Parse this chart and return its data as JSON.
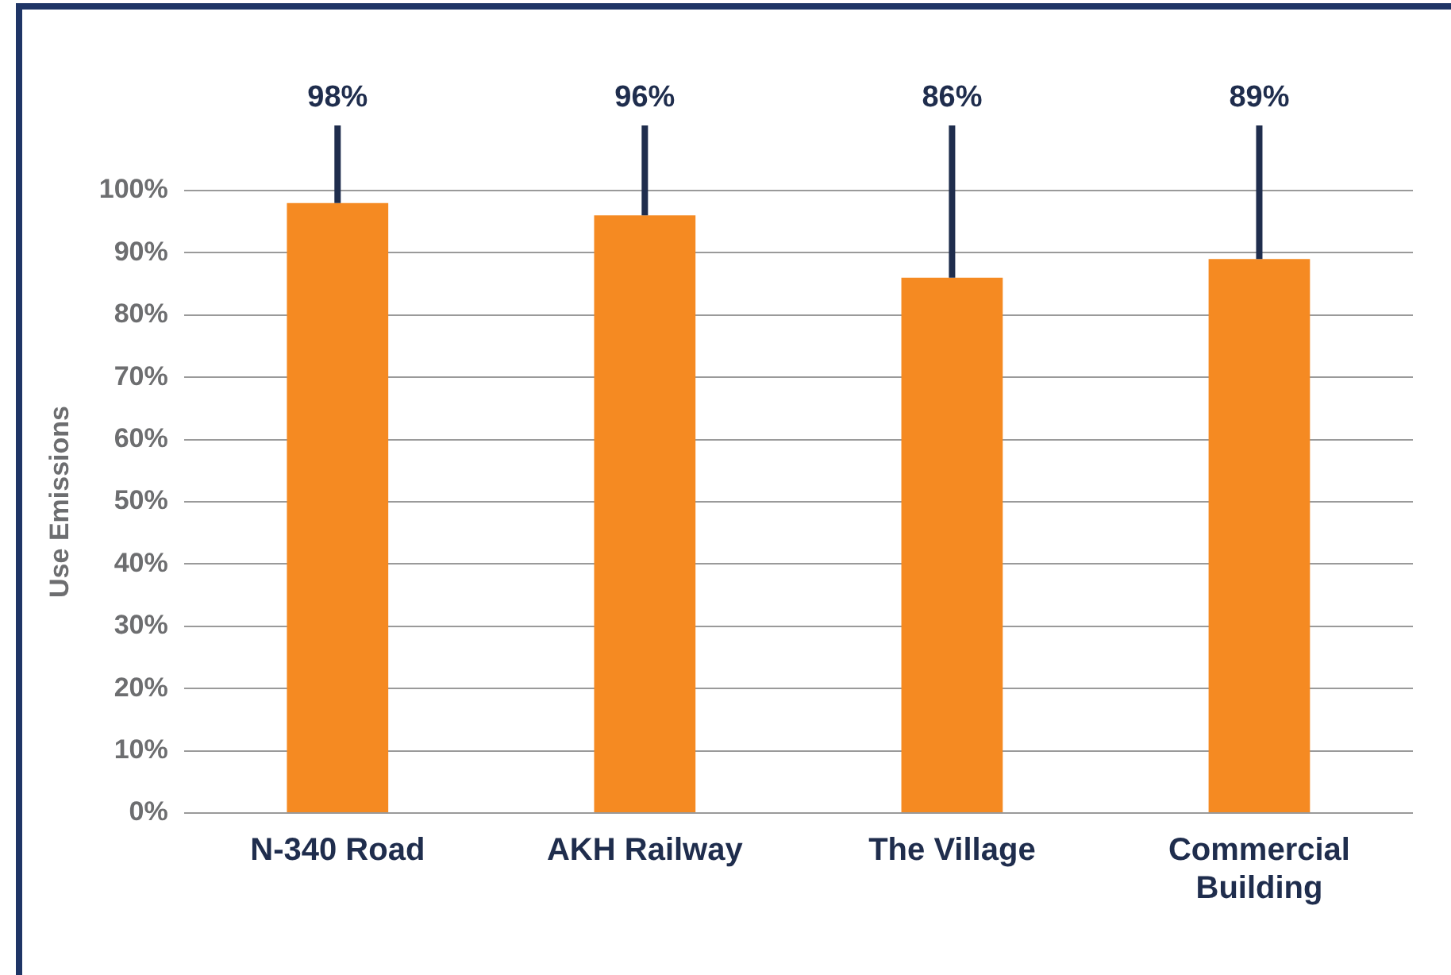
{
  "chart_data": {
    "type": "bar",
    "ylabel": "Use Emissions",
    "categories": [
      "N-340 Road",
      "AKH Railway",
      "The Village",
      "Commercial Building"
    ],
    "values": [
      98,
      96,
      86,
      89
    ],
    "color": "#f58a22",
    "value_labels": [
      "98%",
      "96%",
      "86%",
      "89%"
    ],
    "ylim": [
      0,
      100
    ],
    "yticks": [
      {
        "value": 0,
        "label": "0%"
      },
      {
        "value": 10,
        "label": "10%"
      },
      {
        "value": 20,
        "label": "20%"
      },
      {
        "value": 30,
        "label": "30%"
      },
      {
        "value": 40,
        "label": "40%"
      },
      {
        "value": 50,
        "label": "50%"
      },
      {
        "value": 60,
        "label": "60%"
      },
      {
        "value": 70,
        "label": "70%"
      },
      {
        "value": 80,
        "label": "80%"
      },
      {
        "value": 90,
        "label": "90%"
      },
      {
        "value": 100,
        "label": "100%"
      }
    ],
    "grid": "y",
    "legend": false
  }
}
